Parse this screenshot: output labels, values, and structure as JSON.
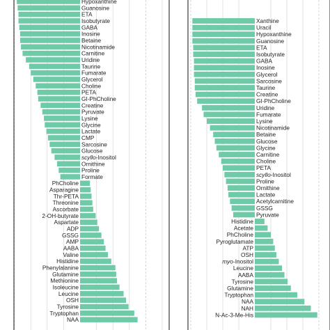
{
  "chart_data": [
    {
      "type": "bar",
      "orientation": "horizontal",
      "color": "#6fcaa7",
      "xlim": [
        -1,
        1
      ],
      "grid": true,
      "categories": [
        "Hypoxanthine",
        "Guanosine",
        "ETA",
        "Isobutyrate",
        "GABA",
        "Inosine",
        "Betaine",
        "Nicotinamide",
        "Carnitine",
        "Uridine",
        "Taurine",
        "Fumarate",
        "Glycerol",
        "Choline",
        "PETA",
        "GI-PhCholine",
        "Creatine",
        "Pyruvate",
        "Lysine",
        "Glycine",
        "Lactate",
        "CMP",
        "Sarcosine",
        "Glucose",
        "scyllo-Inositol",
        "Ornithine",
        "Proline",
        "Formate",
        "PhCholine",
        "Asparagine",
        "Thr-PETA",
        "Threonine",
        "Ascorbate",
        "2-OH-butyrate",
        "Aspartate",
        "ADP",
        "GSSG",
        "AMP",
        "AABA",
        "Valine",
        "Histidine",
        "Phenylalanine",
        "Glutamine",
        "Methionine",
        "Isoleucine",
        "Leucine",
        "OSH",
        "Tyrosine",
        "Tryptophan",
        "NAA"
      ],
      "values": [
        -0.77,
        -0.76,
        -0.75,
        -0.75,
        -0.74,
        -0.73,
        -0.73,
        -0.72,
        -0.7,
        -0.66,
        -0.62,
        -0.6,
        -0.57,
        -0.54,
        -0.52,
        -0.51,
        -0.48,
        -0.46,
        -0.44,
        -0.43,
        -0.41,
        -0.39,
        -0.37,
        -0.35,
        -0.31,
        -0.28,
        -0.26,
        -0.24,
        0.12,
        0.13,
        0.14,
        0.15,
        0.16,
        0.19,
        0.21,
        0.23,
        0.26,
        0.29,
        0.31,
        0.34,
        0.38,
        0.43,
        0.44,
        0.45,
        0.48,
        0.53,
        0.56,
        0.59,
        0.66,
        0.7
      ]
    },
    {
      "type": "bar",
      "orientation": "horizontal",
      "color": "#6fcaa7",
      "xlim": [
        -1,
        1
      ],
      "grid": true,
      "categories": [
        "Xanthine",
        "Uracil",
        "Hypoxanthine",
        "Guanosine",
        "ETA",
        "Isobutyrate",
        "GABA",
        "Inosine",
        "Glycerol",
        "Sarcosine",
        "Taurine",
        "Creatine",
        "GI-PhCholine",
        "Uridine",
        "Fumarate",
        "Lysine",
        "Nicotinamide",
        "Betaine",
        "Glucose",
        "Glycine",
        "Carnitine",
        "Choline",
        "PETA",
        "scyllo-Inositol",
        "Proline",
        "Ornithine",
        "Lactate",
        "Acetylcarnitine",
        "GSSG",
        "Pyruvate",
        "Histidine",
        "Acetate",
        "PhCholine",
        "Pyroglutamate",
        "ATP",
        "OSH",
        "myo-Inositol",
        "Leucine",
        "AABA",
        "Tyrosine",
        "Glutamine",
        "Tryptophan",
        "NAA",
        "NAH",
        "N-Ac-3-Me-His"
      ],
      "values": [
        -0.78,
        -0.78,
        -0.78,
        -0.78,
        -0.77,
        -0.77,
        -0.76,
        -0.76,
        -0.76,
        -0.75,
        -0.75,
        -0.74,
        -0.72,
        -0.66,
        -0.64,
        -0.6,
        -0.56,
        -0.52,
        -0.5,
        -0.48,
        -0.45,
        -0.42,
        -0.4,
        -0.38,
        -0.36,
        -0.34,
        -0.33,
        -0.31,
        -0.29,
        -0.27,
        0.12,
        0.16,
        0.2,
        0.23,
        0.25,
        0.27,
        0.3,
        0.34,
        0.37,
        0.41,
        0.45,
        0.53,
        0.62,
        0.7,
        0.78
      ]
    }
  ]
}
